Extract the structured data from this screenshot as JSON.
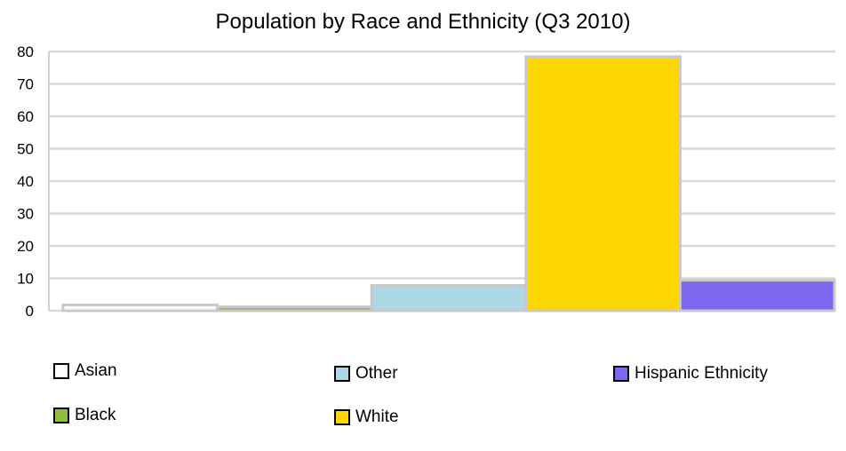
{
  "chart_data": {
    "type": "bar",
    "title": "Population by Race and Ethnicity (Q3 2010)",
    "categories": [
      "Asian",
      "Black",
      "Other",
      "White",
      "Hispanic Ethnicity"
    ],
    "values": [
      1.8,
      1.2,
      7.8,
      78.4,
      9.4
    ],
    "colors": [
      "#ffffff",
      "#8fbf3f",
      "#add8e6",
      "#ffd700",
      "#7b68ee"
    ],
    "ylim": [
      0,
      80
    ],
    "yticks": [
      0,
      10,
      20,
      30,
      40,
      50,
      60,
      70,
      80
    ],
    "grid": true,
    "legend": {
      "placement": "bottom",
      "items": [
        "Asian",
        "Other",
        "Hispanic Ethnicity",
        "Black",
        "White"
      ],
      "colors": [
        "#ffffff",
        "#add8e6",
        "#7b68ee",
        "#8fbf3f",
        "#ffd700"
      ]
    }
  }
}
